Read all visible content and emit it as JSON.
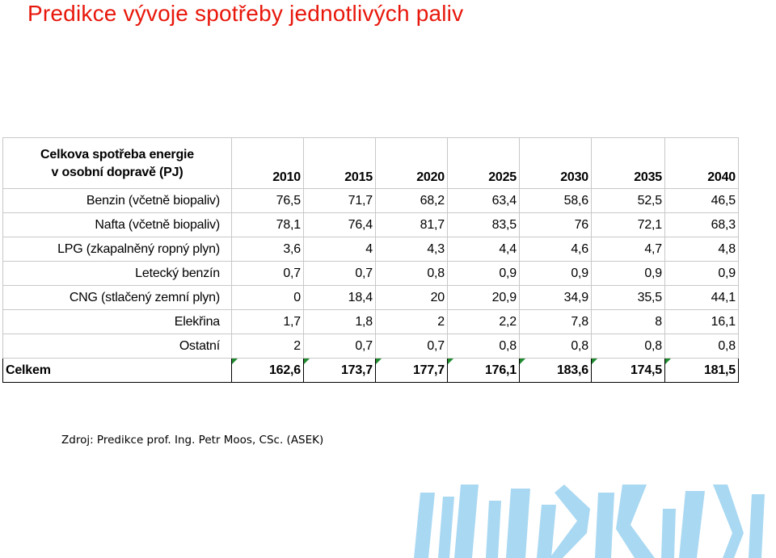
{
  "title": "Predikce vývoje spotřeby jednotlivých paliv",
  "table": {
    "header_label_line1": "Celkova spotřeba energie",
    "header_label_line2": "v osobní dopravě (PJ)",
    "years": [
      "2010",
      "2015",
      "2020",
      "2025",
      "2030",
      "2035",
      "2040"
    ],
    "rows": [
      {
        "label": "Benzin (včetně biopaliv)",
        "values": [
          "76,5",
          "71,7",
          "68,2",
          "63,4",
          "58,6",
          "52,5",
          "46,5"
        ]
      },
      {
        "label": "Nafta (včetně biopaliv)",
        "values": [
          "78,1",
          "76,4",
          "81,7",
          "83,5",
          "76",
          "72,1",
          "68,3"
        ]
      },
      {
        "label": "LPG (zkapalněný ropný plyn)",
        "values": [
          "3,6",
          "4",
          "4,3",
          "4,4",
          "4,6",
          "4,7",
          "4,8"
        ]
      },
      {
        "label": "Letecký benzín",
        "values": [
          "0,7",
          "0,7",
          "0,8",
          "0,9",
          "0,9",
          "0,9",
          "0,9"
        ]
      },
      {
        "label": "CNG (stlačený zemní plyn)",
        "values": [
          "0",
          "18,4",
          "20",
          "20,9",
          "34,9",
          "35,5",
          "44,1"
        ]
      },
      {
        "label": "Elekřina",
        "values": [
          "1,7",
          "1,8",
          "2",
          "2,2",
          "7,8",
          "8",
          "16,1"
        ]
      },
      {
        "label": "Ostatní",
        "values": [
          "2",
          "0,7",
          "0,7",
          "0,8",
          "0,8",
          "0,8",
          "0,8"
        ]
      }
    ],
    "total": {
      "label": "Celkem",
      "values": [
        "162,6",
        "173,7",
        "177,7",
        "176,1",
        "183,6",
        "174,5",
        "181,5"
      ]
    }
  },
  "source": "Zdroj: Predikce prof. Ing. Petr Moos, CSc. (ASEK)",
  "colors": {
    "title": "#e8170b",
    "decor": "#a9d8f2",
    "cell_marker": "#1f8a2e"
  }
}
